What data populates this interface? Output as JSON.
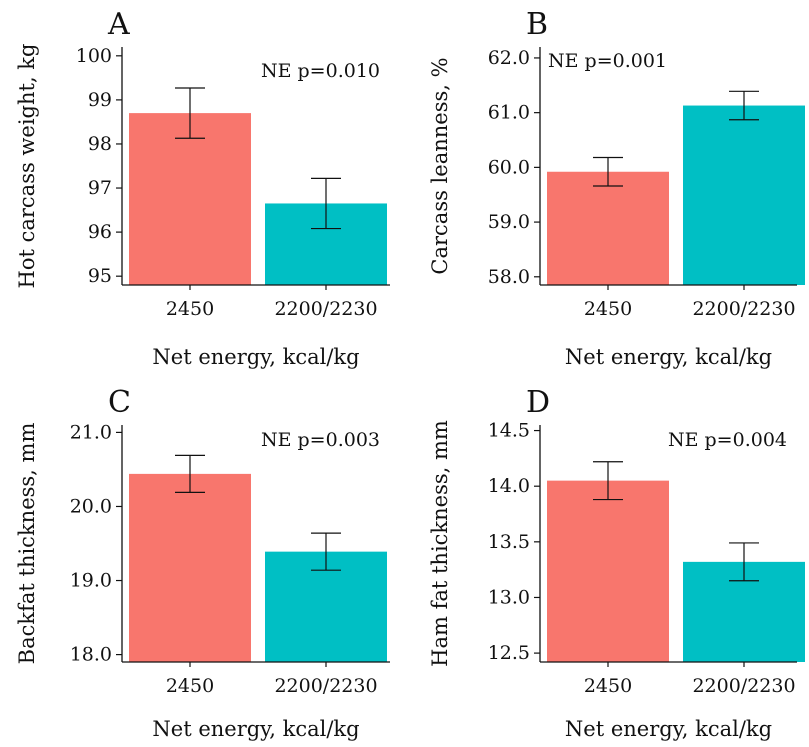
{
  "colors": {
    "bar_2450": "#f8766d",
    "bar_2200": "#00bfc4",
    "axis": "#111111"
  },
  "chart_data": [
    {
      "panel_label": "A",
      "type": "bar",
      "categories": [
        "2450",
        "2200/2230"
      ],
      "values": [
        98.7,
        96.65
      ],
      "errors": [
        [
          98.13,
          99.27
        ],
        [
          96.08,
          97.22
        ]
      ],
      "ylim": [
        94.8,
        100.2
      ],
      "yticks": [
        "95",
        "96",
        "97",
        "98",
        "99",
        "100"
      ],
      "ylabel": "Hot carcass weight, kg",
      "xlabel": "Net energy, kcal/kg",
      "annotation": "NE p=0.010",
      "annotation_position": "top-right",
      "grid": false
    },
    {
      "panel_label": "B",
      "type": "bar",
      "categories": [
        "2450",
        "2200/2230"
      ],
      "values": [
        59.92,
        61.13
      ],
      "errors": [
        [
          59.66,
          60.18
        ],
        [
          60.87,
          61.39
        ]
      ],
      "ylim": [
        57.85,
        62.2
      ],
      "yticks": [
        "58.0",
        "59.0",
        "60.0",
        "61.0",
        "62.0"
      ],
      "ylabel": "Carcass leanness, %",
      "xlabel": "Net energy, kcal/kg",
      "annotation": "NE p=0.001",
      "annotation_position": "top-left",
      "grid": false
    },
    {
      "panel_label": "C",
      "type": "bar",
      "categories": [
        "2450",
        "2200/2230"
      ],
      "values": [
        20.44,
        19.39
      ],
      "errors": [
        [
          20.19,
          20.69
        ],
        [
          19.14,
          19.64
        ]
      ],
      "ylim": [
        17.9,
        21.1
      ],
      "yticks": [
        "18.0",
        "19.0",
        "20.0",
        "21.0"
      ],
      "ylabel": "Backfat thickness, mm",
      "xlabel": "Net energy, kcal/kg",
      "annotation": "NE p=0.003",
      "annotation_position": "top-right",
      "grid": false
    },
    {
      "panel_label": "D",
      "type": "bar",
      "categories": [
        "2450",
        "2200/2230"
      ],
      "values": [
        14.05,
        13.32
      ],
      "errors": [
        [
          13.88,
          14.22
        ],
        [
          13.15,
          13.49
        ]
      ],
      "ylim": [
        12.42,
        14.55
      ],
      "yticks": [
        "12.5",
        "13.0",
        "13.5",
        "14.0",
        "14.5"
      ],
      "ylabel": "Ham fat thickness, mm",
      "xlabel": "Net energy, kcal/kg",
      "annotation": "NE p=0.004",
      "annotation_position": "top-right",
      "grid": false
    }
  ]
}
